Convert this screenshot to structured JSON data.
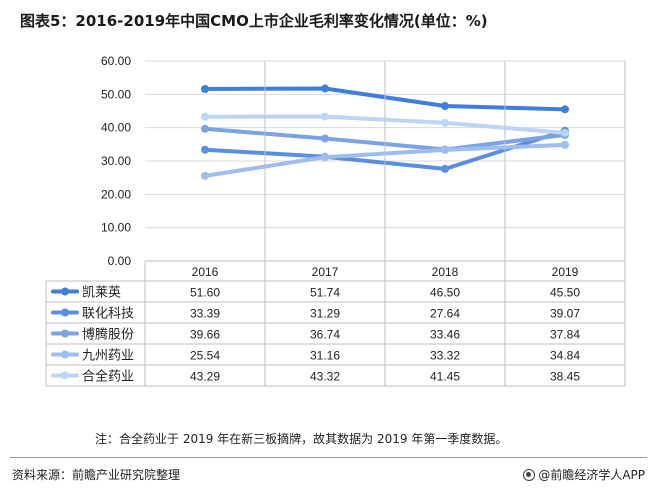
{
  "title": "图表5：2016-2019年中国CMO上市企业毛利率变化情况(单位：%)",
  "note": "注：合全药业于 2019 年在新三板摘牌，故其数据为 2019 年第一季度数据。",
  "source": "资料来源：前瞻产业研究院整理",
  "brand": "@前瞻经济学人APP",
  "chart_data": {
    "type": "line",
    "categories": [
      "2016",
      "2017",
      "2018",
      "2019"
    ],
    "y_ticks": [
      "60.00",
      "50.00",
      "40.00",
      "30.00",
      "20.00",
      "10.00",
      "0.00"
    ],
    "ylim": [
      0,
      60
    ],
    "grid": true,
    "legend": "table-left",
    "series": [
      {
        "name": "凯莱英",
        "values": [
          51.6,
          51.74,
          46.5,
          45.5
        ],
        "labels": [
          "51.60",
          "51.74",
          "46.50",
          "45.50"
        ],
        "color": "#3e7fdc"
      },
      {
        "name": "联化科技",
        "values": [
          33.39,
          31.29,
          27.64,
          39.07
        ],
        "labels": [
          "33.39",
          "31.29",
          "27.64",
          "39.07"
        ],
        "color": "#5a8fe0"
      },
      {
        "name": "博腾股份",
        "values": [
          39.66,
          36.74,
          33.46,
          37.84
        ],
        "labels": [
          "39.66",
          "36.74",
          "33.46",
          "37.84"
        ],
        "color": "#7aa3e4"
      },
      {
        "name": "九州药业",
        "values": [
          25.54,
          31.16,
          33.32,
          34.84
        ],
        "labels": [
          "25.54",
          "31.16",
          "33.32",
          "34.84"
        ],
        "color": "#9dbdee"
      },
      {
        "name": "合全药业",
        "values": [
          43.29,
          43.32,
          41.45,
          38.45
        ],
        "labels": [
          "43.29",
          "43.32",
          "41.45",
          "38.45"
        ],
        "color": "#bcd4f5"
      }
    ]
  }
}
